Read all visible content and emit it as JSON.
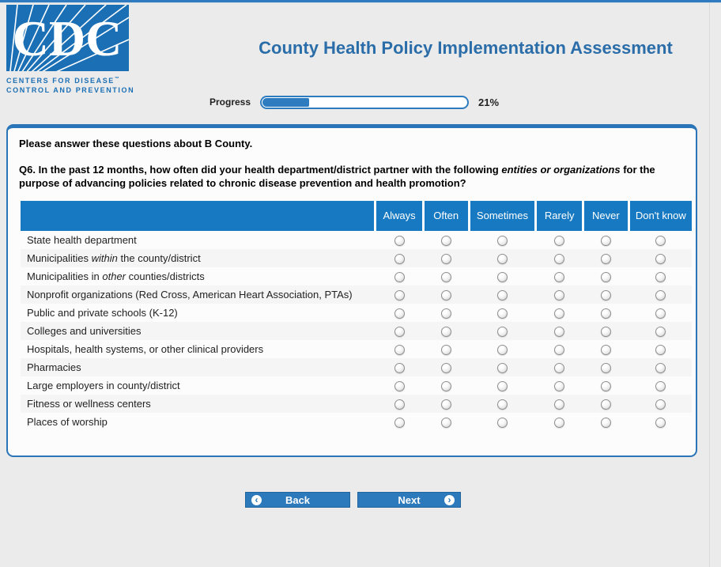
{
  "colors": {
    "brand_blue": "#1B6FB5",
    "top_bar_blue": "#2E7CBF",
    "title_blue": "#2A6DA8",
    "table_header_blue": "#1779C1",
    "button_blue": "#2C79BC",
    "panel_border_blue": "#2A74B8",
    "page_background": "#EBEBEB",
    "row_stripe": "#F5F5F5"
  },
  "header": {
    "logo": {
      "acronym": "CDC",
      "line1": "CENTERS FOR DISEASE",
      "trademark": "™",
      "line2": "CONTROL AND PREVENTION"
    },
    "title": "County Health Policy Implementation Assessment"
  },
  "progress": {
    "label": "Progress",
    "percent": 21,
    "value_text": "21%"
  },
  "panel": {
    "intro": "Please answer these questions about B County.",
    "question": {
      "number": "Q6.",
      "text_before": " In the past 12 months, how often did your health department/district partner with the following ",
      "emphasis": "entities or organizations",
      "text_after": " for the purpose of advancing policies related to chronic disease prevention and health promotion?"
    }
  },
  "table": {
    "columns": [
      "Always",
      "Often",
      "Sometimes",
      "Rarely",
      "Never",
      "Don't know"
    ],
    "rows": [
      {
        "parts": [
          {
            "t": "State health department"
          }
        ]
      },
      {
        "parts": [
          {
            "t": "Municipalities "
          },
          {
            "t": "within",
            "i": true
          },
          {
            "t": " the county/district"
          }
        ]
      },
      {
        "parts": [
          {
            "t": "Municipalities in "
          },
          {
            "t": "other",
            "i": true
          },
          {
            "t": " counties/districts"
          }
        ]
      },
      {
        "parts": [
          {
            "t": "Nonprofit organizations (Red Cross, American Heart Association, PTAs)"
          }
        ]
      },
      {
        "parts": [
          {
            "t": "Public and private schools (K-12)"
          }
        ]
      },
      {
        "parts": [
          {
            "t": "Colleges and universities"
          }
        ]
      },
      {
        "parts": [
          {
            "t": "Hospitals, health systems, or other clinical providers"
          }
        ]
      },
      {
        "parts": [
          {
            "t": "Pharmacies"
          }
        ]
      },
      {
        "parts": [
          {
            "t": "Large employers in county/district"
          }
        ]
      },
      {
        "parts": [
          {
            "t": "Fitness or wellness centers"
          }
        ]
      },
      {
        "parts": [
          {
            "t": "Places of worship"
          }
        ]
      }
    ],
    "selected_answers": null
  },
  "buttons": {
    "back": "Back",
    "next": "Next"
  },
  "icons": {
    "chevron_left": "‹",
    "chevron_right": "›"
  }
}
